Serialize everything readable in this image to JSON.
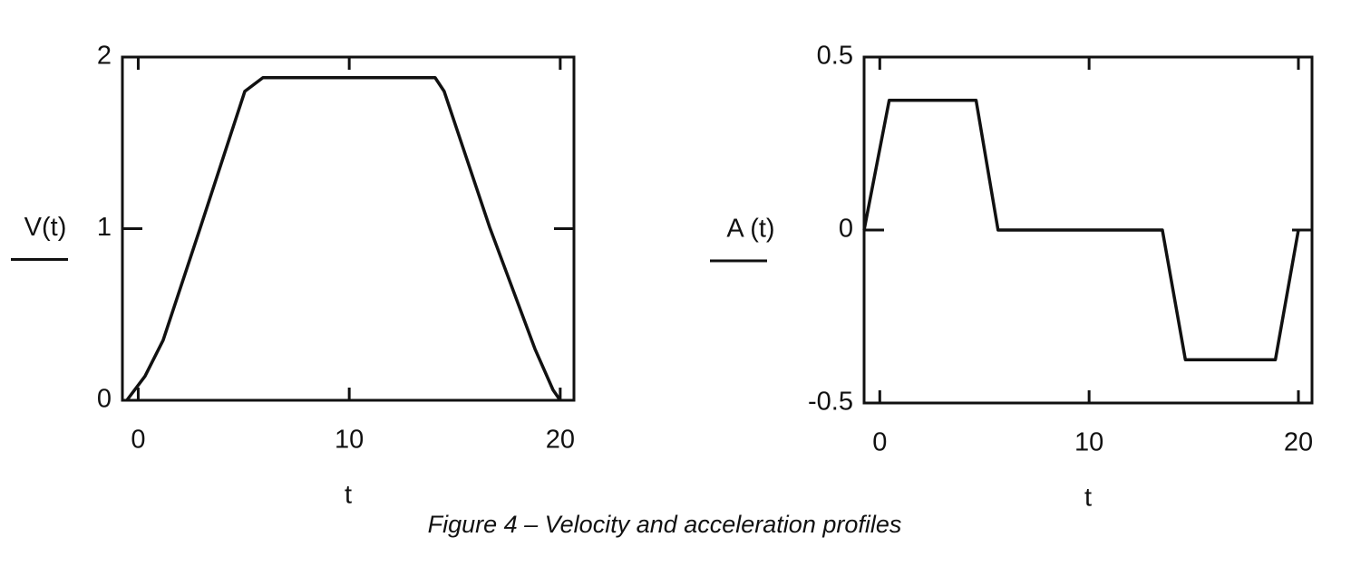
{
  "chart_data": [
    {
      "type": "line",
      "ylabel": "V(t)",
      "xlabel": "t",
      "x": [
        -0.54,
        0.32,
        1.18,
        2.9,
        5.05,
        5.91,
        14.07,
        14.5,
        16.65,
        18.8,
        19.66,
        20.0
      ],
      "series": [
        {
          "color": "#111111",
          "values": [
            0,
            0.14,
            0.35,
            0.99,
            1.8,
            1.88,
            1.88,
            1.8,
            1.01,
            0.3,
            0.06,
            0
          ]
        }
      ],
      "xlim": [
        -0.75,
        20.65
      ],
      "ylim": [
        0,
        2
      ],
      "xticks": [
        0,
        10,
        20
      ],
      "yticks": [
        0,
        1,
        2
      ]
    },
    {
      "type": "line",
      "ylabel": "A (t)",
      "xlabel": "t",
      "x": [
        -0.75,
        0.45,
        4.6,
        5.65,
        13.5,
        14.6,
        18.9,
        20.0
      ],
      "series": [
        {
          "color": "#111111",
          "values": [
            0,
            0.375,
            0.375,
            0,
            0,
            -0.375,
            -0.375,
            0
          ]
        }
      ],
      "xlim": [
        -0.75,
        20.65
      ],
      "ylim": [
        -0.5,
        0.5
      ],
      "xticks": [
        0,
        10,
        20
      ],
      "yticks": [
        -0.5,
        0,
        0.5
      ]
    }
  ],
  "caption": "Figure 4 – Velocity and acceleration profiles"
}
